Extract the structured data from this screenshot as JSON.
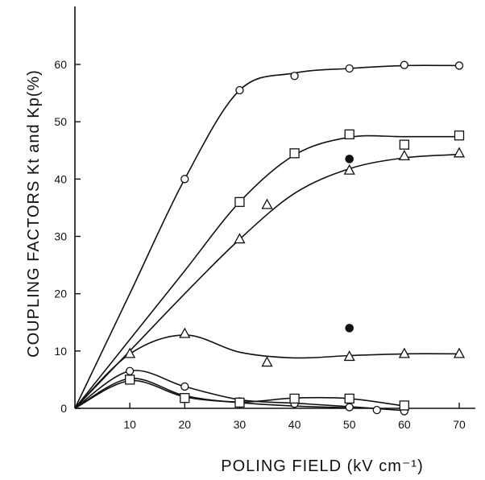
{
  "chart_data": {
    "type": "line",
    "xlabel": "POLING FIELD (kV cm⁻¹)",
    "ylabel": "COUPLING FACTORS Kt and Kp(%)",
    "xlim": [
      0,
      75
    ],
    "ylim": [
      0,
      70
    ],
    "xticks": [
      10,
      20,
      30,
      40,
      50,
      60,
      70
    ],
    "yticks": [
      0,
      10,
      20,
      30,
      40,
      50,
      60
    ],
    "x_tick_labels": [
      "10",
      "20",
      "30",
      "40",
      "50",
      "60",
      "70"
    ],
    "y_tick_labels": [
      "0",
      "10",
      "20",
      "30",
      "40",
      "50",
      "60"
    ],
    "grid": false,
    "series": [
      {
        "marker": "circle",
        "points": [
          [
            20,
            40
          ],
          [
            30,
            55.5
          ],
          [
            40,
            58
          ],
          [
            50,
            59.3
          ],
          [
            60,
            59.9
          ],
          [
            70,
            59.8
          ]
        ],
        "curve": [
          [
            0,
            0
          ],
          [
            10,
            20
          ],
          [
            20,
            40
          ],
          [
            30,
            55.5
          ],
          [
            40,
            58.5
          ],
          [
            50,
            59.3
          ],
          [
            60,
            59.8
          ],
          [
            70,
            59.8
          ]
        ]
      },
      {
        "marker": "square",
        "points": [
          [
            30,
            36
          ],
          [
            40,
            44.5
          ],
          [
            50,
            47.8
          ],
          [
            60,
            46
          ],
          [
            70,
            47.6
          ]
        ],
        "curve": [
          [
            0,
            0
          ],
          [
            10,
            12
          ],
          [
            20,
            24
          ],
          [
            30,
            36
          ],
          [
            40,
            44.2
          ],
          [
            50,
            47.3
          ],
          [
            60,
            47.4
          ],
          [
            70,
            47.4
          ]
        ]
      },
      {
        "marker": "triangle",
        "points": [
          [
            30,
            29.5
          ],
          [
            35,
            35.5
          ],
          [
            50,
            41.5
          ],
          [
            60,
            44
          ],
          [
            70,
            44.5
          ]
        ],
        "curve": [
          [
            0,
            0
          ],
          [
            10,
            10
          ],
          [
            20,
            20
          ],
          [
            30,
            29.5
          ],
          [
            40,
            37.5
          ],
          [
            50,
            41.8
          ],
          [
            60,
            43.7
          ],
          [
            70,
            44.3
          ]
        ]
      },
      {
        "marker": "filled-circle",
        "points": [
          [
            50,
            43.5
          ],
          [
            50,
            14
          ]
        ],
        "curve": []
      },
      {
        "marker": "triangle",
        "points": [
          [
            10,
            9.5
          ],
          [
            20,
            13
          ],
          [
            35,
            8
          ],
          [
            50,
            9
          ],
          [
            60,
            9.5
          ],
          [
            70,
            9.5
          ]
        ],
        "curve": [
          [
            0,
            0
          ],
          [
            10,
            9.5
          ],
          [
            20,
            12.8
          ],
          [
            30,
            9.8
          ],
          [
            40,
            8.8
          ],
          [
            50,
            9.2
          ],
          [
            60,
            9.5
          ],
          [
            70,
            9.5
          ]
        ]
      },
      {
        "marker": "circle",
        "points": [
          [
            10,
            6.5
          ],
          [
            20,
            3.8
          ],
          [
            30,
            1.2
          ],
          [
            40,
            0.8
          ],
          [
            50,
            0.2
          ],
          [
            55,
            -0.3
          ],
          [
            60,
            -0.5
          ]
        ],
        "curve": [
          [
            0,
            0
          ],
          [
            10,
            6.5
          ],
          [
            20,
            3.8
          ],
          [
            30,
            1.5
          ],
          [
            40,
            0.9
          ],
          [
            50,
            0.3
          ],
          [
            60,
            -0.4
          ]
        ]
      },
      {
        "marker": "square",
        "points": [
          [
            10,
            5
          ],
          [
            20,
            1.8
          ],
          [
            30,
            1
          ],
          [
            40,
            1.7
          ],
          [
            50,
            1.7
          ],
          [
            60,
            0.5
          ]
        ],
        "curve": [
          [
            0,
            0
          ],
          [
            10,
            5.2
          ],
          [
            20,
            2.2
          ],
          [
            30,
            1.1
          ],
          [
            40,
            1.8
          ],
          [
            50,
            1.7
          ],
          [
            60,
            0.4
          ]
        ]
      },
      {
        "marker": "circle",
        "points": [],
        "curve": [
          [
            0,
            0
          ],
          [
            10,
            4.8
          ],
          [
            20,
            2
          ],
          [
            30,
            1
          ],
          [
            40,
            0.4
          ],
          [
            50,
            0.1
          ]
        ]
      }
    ]
  }
}
